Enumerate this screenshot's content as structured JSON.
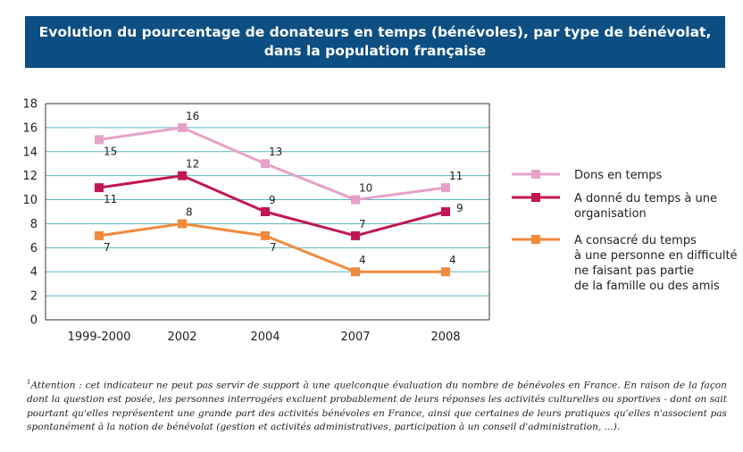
{
  "title": {
    "line1": "Evolution du pourcentage de donateurs en temps (bénévoles), par type de bénévolat,",
    "line2": "dans la population française"
  },
  "chart_data": {
    "type": "line",
    "categories": [
      "1999-2000",
      "2002",
      "2004",
      "2007",
      "2008"
    ],
    "ylim": [
      0,
      18
    ],
    "yticks": [
      0,
      2,
      4,
      6,
      8,
      10,
      12,
      14,
      16,
      18
    ],
    "grid": true,
    "legend_position": "right",
    "series": [
      {
        "name": "Dons en temps",
        "name_lines": [
          "Dons en temps"
        ],
        "color": "#e7a1c9",
        "values": [
          15,
          16,
          13,
          10,
          11
        ],
        "label_pos": [
          "below",
          "above",
          "above",
          "above",
          "above"
        ]
      },
      {
        "name": "A donné du temps à une organisation",
        "name_lines": [
          "A donné du temps à une",
          "organisation"
        ],
        "color": "#c2174f",
        "values": [
          11,
          12,
          9,
          7,
          9
        ],
        "label_pos": [
          "below",
          "above",
          "above",
          "above",
          "right"
        ]
      },
      {
        "name": "A consacré du temps à une personne en difficulté ne faisant pas partie de la famille ou des amis",
        "name_lines": [
          "A consacré du temps",
          "à une personne en difficulté",
          "ne faisant pas partie",
          "de la famille ou des amis"
        ],
        "color": "#f08a3c",
        "values": [
          7,
          8,
          7,
          4,
          4
        ],
        "label_pos": [
          "below",
          "above",
          "below",
          "above",
          "above"
        ]
      }
    ]
  },
  "footnote": {
    "marker": "1",
    "text": "Attention : cet indicateur ne peut pas servir de support à une quelconque évaluation du nombre de bénévoles en France. En raison de la façon dont la question est posée, les personnes interrogées excluent probablement de leurs réponses les activités culturelles ou sportives - dont on sait pourtant qu'elles représentent une grande part des activités bénévoles en France,  ainsi que certaines de leurs pratiques qu'elles n'associent pas spontanément à la notion de bénévolat (gestion et activités administratives, participation à un conseil d'administration, ...)."
  }
}
